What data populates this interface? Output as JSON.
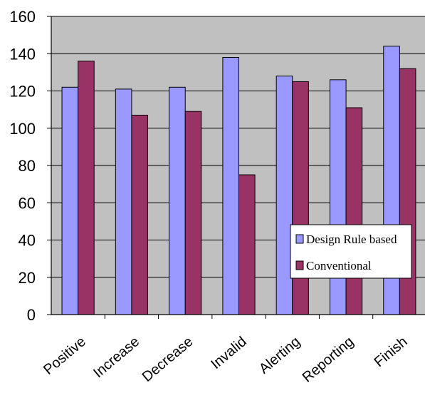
{
  "chart_data": {
    "type": "bar",
    "categories": [
      "Positive",
      "Increase",
      "Decrease",
      "Invalid",
      "Alerting",
      "Reporting",
      "Finish"
    ],
    "series": [
      {
        "name": "Design Rule based",
        "color": "#9999ff",
        "values": [
          122,
          121,
          122,
          138,
          128,
          126,
          144
        ]
      },
      {
        "name": "Conventional",
        "color": "#993366",
        "values": [
          136,
          107,
          109,
          75,
          125,
          111,
          132
        ]
      }
    ],
    "ylim": [
      0,
      160
    ],
    "yticks": [
      0,
      20,
      40,
      60,
      80,
      100,
      120,
      140,
      160
    ],
    "grid": true,
    "plot_background": "#c0c0c0",
    "legend_position": "right"
  }
}
